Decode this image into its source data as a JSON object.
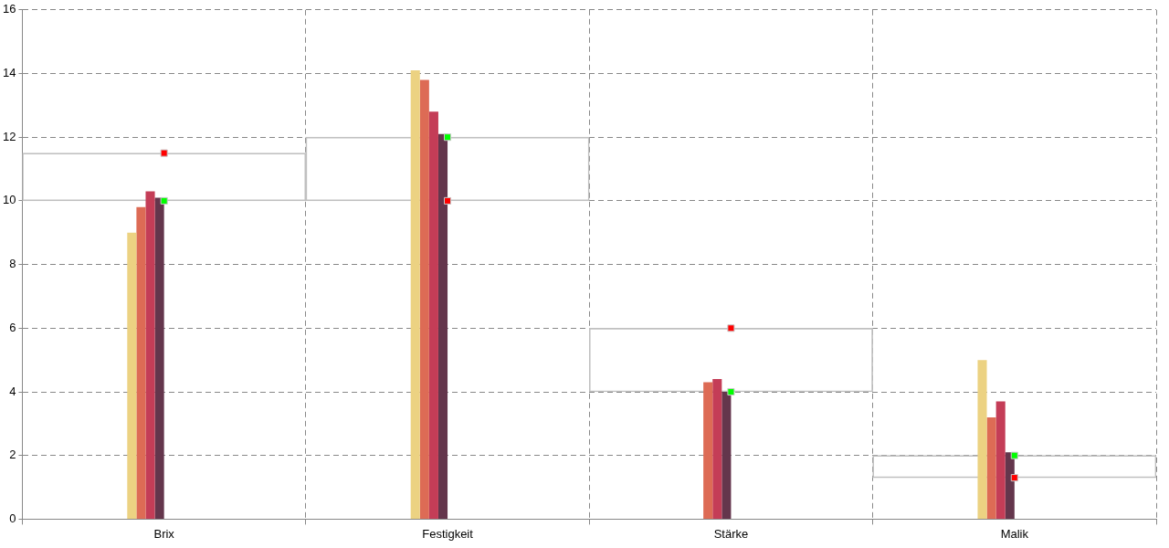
{
  "chart_data": {
    "type": "bar",
    "categories": [
      "Brix",
      "Festigkeit",
      "Stärke",
      "Malik"
    ],
    "series": [
      {
        "color": "#ecd282",
        "values": [
          9.0,
          14.1,
          0,
          5.0
        ]
      },
      {
        "color": "#dd6b55",
        "values": [
          9.8,
          13.8,
          4.3,
          3.2
        ]
      },
      {
        "color": "#c43d57",
        "values": [
          10.3,
          12.8,
          4.4,
          3.7
        ]
      },
      {
        "color": "#64364c",
        "values": [
          10.1,
          12.1,
          4.0,
          2.1
        ]
      },
      {
        "type": "bar",
        "color": "#c0c0c0",
        "base": [
          10,
          10,
          4,
          1.3
        ],
        "values": [
          1.5,
          2,
          2,
          0.7
        ]
      },
      {
        "type": "scatter",
        "marker": "square",
        "color": "#00ff00",
        "x": [
          "Brix",
          "Festigkeit",
          "Stärke",
          "Malik"
        ],
        "values": [
          10,
          12,
          4,
          2
        ]
      },
      {
        "type": "scatter",
        "marker": "square",
        "color": "#ff0000",
        "x": [
          "Brix",
          "Festigkeit",
          "Stärke",
          "Malik"
        ],
        "values": [
          11.5,
          10,
          6,
          1.3
        ]
      }
    ],
    "ylim": [
      0,
      16
    ],
    "yticks": [
      0,
      2,
      4,
      6,
      8,
      10,
      12,
      14,
      16
    ],
    "grid": true,
    "legend": false
  }
}
